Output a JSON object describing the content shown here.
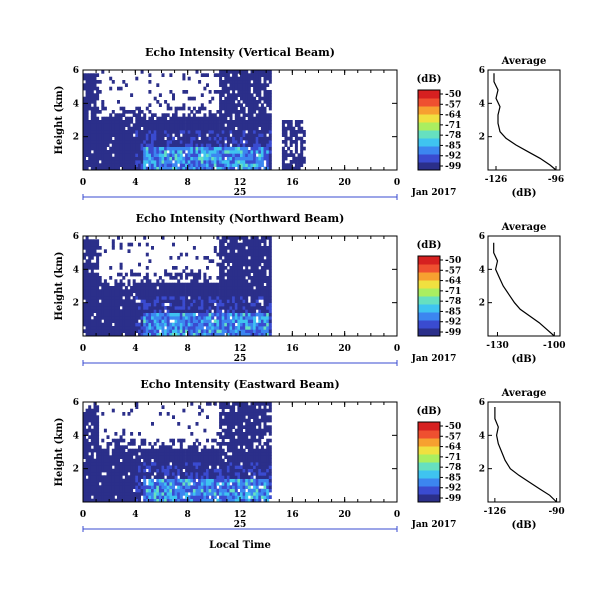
{
  "bottom_axis_label": "Local Time",
  "colorbar": {
    "unit": "(dB)",
    "ticks": [
      "-50",
      "-57",
      "-64",
      "-71",
      "-78",
      "-85",
      "-92",
      "-99"
    ],
    "colors": [
      "#2b2f8a",
      "#3a4bd0",
      "#3c86f0",
      "#3fc4f0",
      "#66e0c0",
      "#aaee60",
      "#f0e040",
      "#f7a030",
      "#ef5030",
      "#d62020"
    ]
  },
  "chart_data": [
    {
      "type": "heatmap",
      "title": "Echo Intensity (Vertical Beam)",
      "ylabel": "Height (km)",
      "xlabel": "Local Time",
      "x_ticks": [
        "0",
        "4",
        "8",
        "12",
        "16",
        "20",
        "0"
      ],
      "y_ticks": [
        "2",
        "4",
        "6"
      ],
      "date_label": "25",
      "month_label": "Jan 2017",
      "xlim": [
        0,
        24
      ],
      "ylim": [
        0,
        6
      ],
      "zlim": [
        -99,
        -50
      ],
      "profile": {
        "title": "Average",
        "xlabel": "(dB)",
        "x_ticks": [
          "-126",
          "-96"
        ],
        "xlim": [
          -130,
          -94
        ],
        "y_ticks": [
          "2",
          "4",
          "6"
        ],
        "points": [
          [
            -96,
            0
          ],
          [
            -99,
            0.3
          ],
          [
            -104,
            0.7
          ],
          [
            -110,
            1.1
          ],
          [
            -116,
            1.5
          ],
          [
            -121,
            1.9
          ],
          [
            -124,
            2.3
          ],
          [
            -125,
            2.8
          ],
          [
            -125,
            3.3
          ],
          [
            -124,
            3.8
          ],
          [
            -126,
            4.3
          ],
          [
            -125,
            4.8
          ],
          [
            -127,
            5.3
          ],
          [
            -127,
            5.8
          ]
        ]
      }
    },
    {
      "type": "heatmap",
      "title": "Echo Intensity (Northward Beam)",
      "ylabel": "Height (km)",
      "xlabel": "Local Time",
      "x_ticks": [
        "0",
        "4",
        "8",
        "12",
        "16",
        "20",
        "0"
      ],
      "y_ticks": [
        "2",
        "4",
        "6"
      ],
      "date_label": "25",
      "month_label": "Jan 2017",
      "xlim": [
        0,
        24
      ],
      "ylim": [
        0,
        6
      ],
      "zlim": [
        -99,
        -50
      ],
      "profile": {
        "title": "Average",
        "xlabel": "(dB)",
        "x_ticks": [
          "-130",
          "-100"
        ],
        "xlim": [
          -135,
          -97
        ],
        "y_ticks": [
          "2",
          "4",
          "6"
        ],
        "points": [
          [
            -100,
            0
          ],
          [
            -104,
            0.4
          ],
          [
            -108,
            0.8
          ],
          [
            -113,
            1.2
          ],
          [
            -118,
            1.6
          ],
          [
            -121,
            2.0
          ],
          [
            -124,
            2.5
          ],
          [
            -127,
            3.0
          ],
          [
            -129,
            3.5
          ],
          [
            -131,
            4.0
          ],
          [
            -130,
            4.5
          ],
          [
            -132,
            5.0
          ],
          [
            -132,
            5.6
          ]
        ]
      }
    },
    {
      "type": "heatmap",
      "title": "Echo Intensity (Eastward Beam)",
      "ylabel": "Height (km)",
      "xlabel": "Local Time",
      "x_ticks": [
        "0",
        "4",
        "8",
        "12",
        "16",
        "20",
        "0"
      ],
      "y_ticks": [
        "2",
        "4",
        "6"
      ],
      "date_label": "25",
      "month_label": "Jan 2017",
      "xlim": [
        0,
        24
      ],
      "ylim": [
        0,
        6
      ],
      "zlim": [
        -99,
        -50
      ],
      "profile": {
        "title": "Average",
        "xlabel": "(dB)",
        "x_ticks": [
          "-126",
          "-90"
        ],
        "xlim": [
          -130,
          -88
        ],
        "y_ticks": [
          "2",
          "4",
          "6"
        ],
        "points": [
          [
            -90,
            0
          ],
          [
            -94,
            0.4
          ],
          [
            -100,
            0.8
          ],
          [
            -106,
            1.2
          ],
          [
            -112,
            1.6
          ],
          [
            -117,
            2.0
          ],
          [
            -120,
            2.5
          ],
          [
            -122,
            3.0
          ],
          [
            -124,
            3.5
          ],
          [
            -125,
            4.0
          ],
          [
            -124,
            4.5
          ],
          [
            -126,
            5.0
          ],
          [
            -126,
            5.7
          ]
        ]
      }
    }
  ]
}
